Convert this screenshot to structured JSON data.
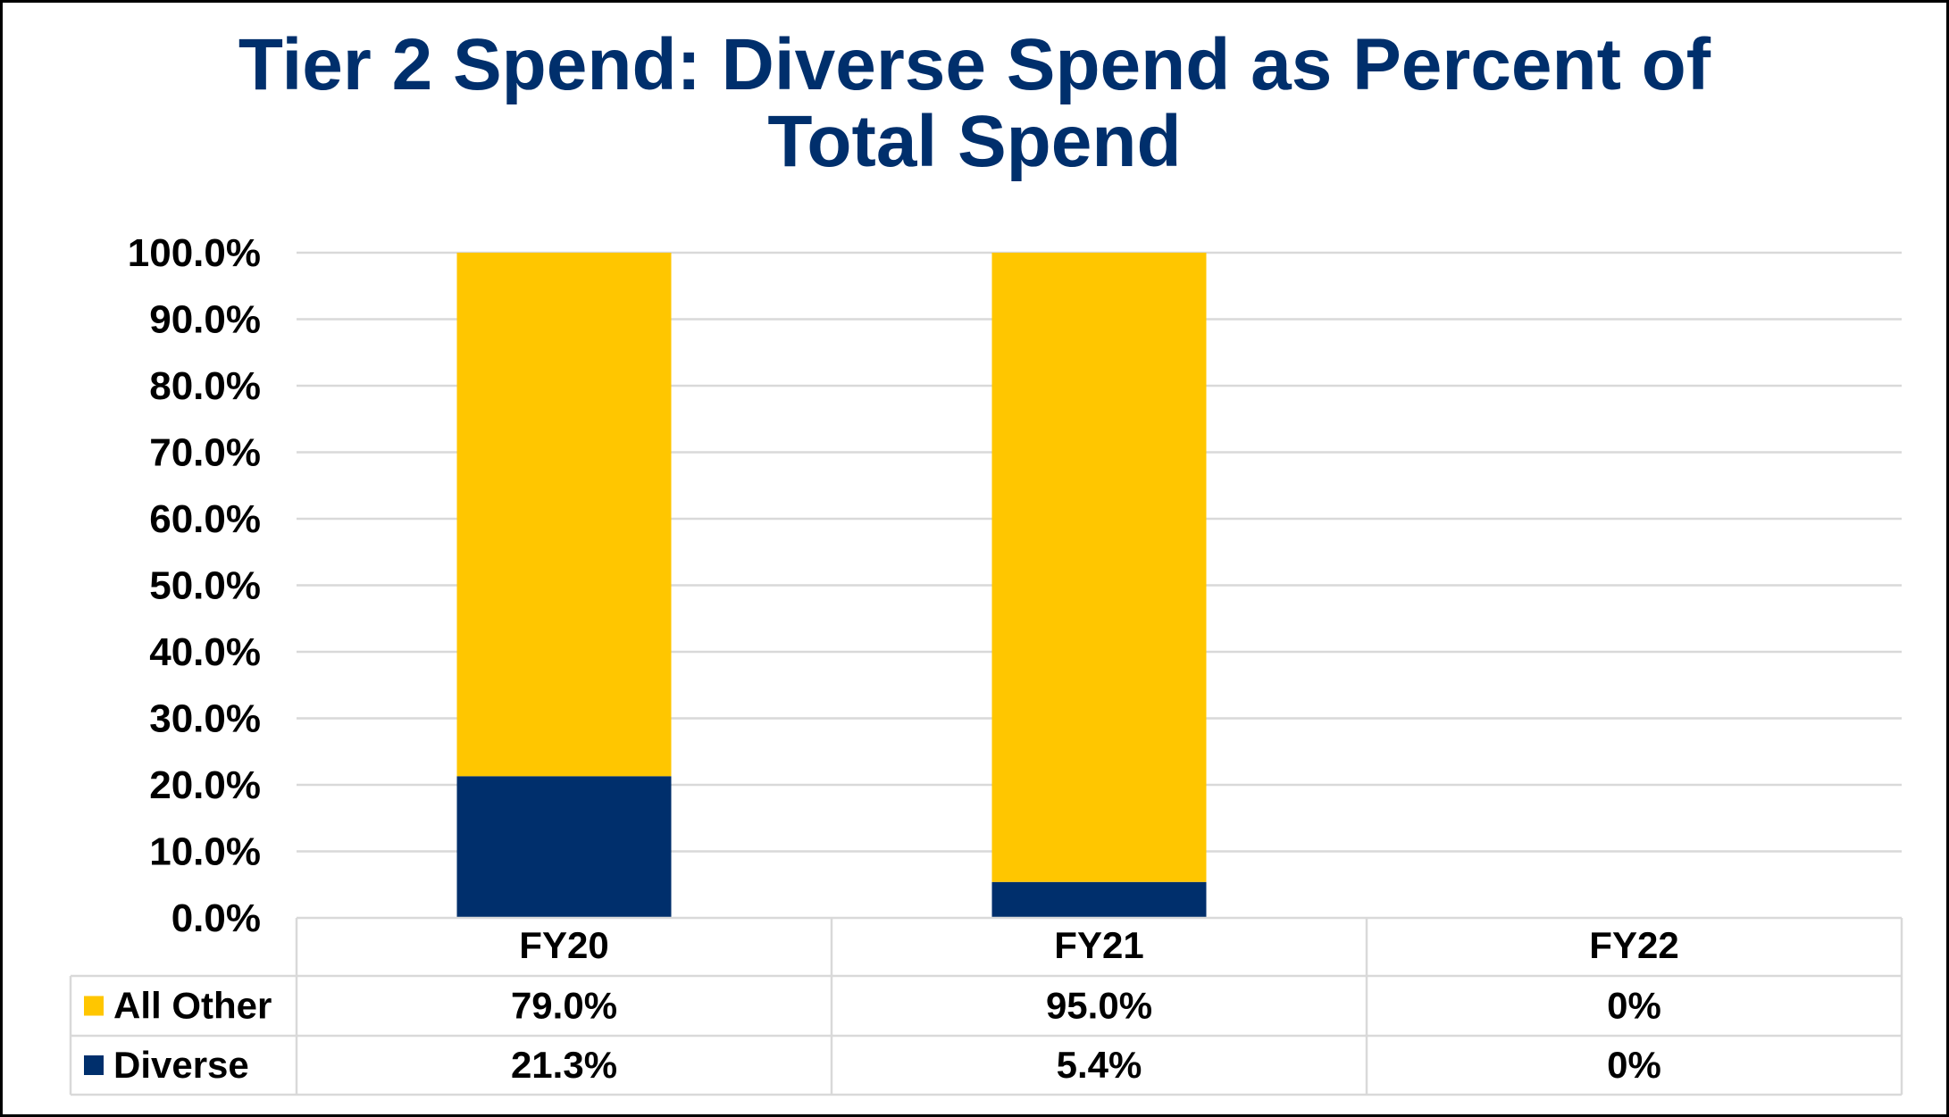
{
  "chart_data": {
    "type": "bar",
    "stacked": true,
    "title": "Tier 2 Spend: Diverse Spend as Percent of Total Spend",
    "title_lines": [
      "Tier 2 Spend: Diverse Spend as Percent of",
      "Total Spend"
    ],
    "categories": [
      "FY20",
      "FY21",
      "FY22"
    ],
    "series": [
      {
        "name": "Diverse",
        "values": [
          21.3,
          5.4,
          0
        ],
        "labels": [
          "21.3%",
          "5.4%",
          "0%"
        ],
        "color": "#002F6C"
      },
      {
        "name": "All Other",
        "values": [
          79.0,
          95.0,
          0
        ],
        "labels": [
          "79.0%",
          "95.0%",
          "0%"
        ],
        "color": "#FFC600"
      }
    ],
    "table_order": [
      "All Other",
      "Diverse"
    ],
    "xlabel": "",
    "ylabel": "",
    "ylim": [
      0,
      100
    ],
    "yticks": [
      0,
      10,
      20,
      30,
      40,
      50,
      60,
      70,
      80,
      90,
      100
    ],
    "ytick_labels": [
      "0.0%",
      "10.0%",
      "20.0%",
      "30.0%",
      "40.0%",
      "50.0%",
      "60.0%",
      "70.0%",
      "80.0%",
      "90.0%",
      "100.0%"
    ],
    "grid": true,
    "legend": "data-table",
    "colors": {
      "title": "#002F6C",
      "grid": "#D9D9D9",
      "border": "#000000"
    }
  }
}
